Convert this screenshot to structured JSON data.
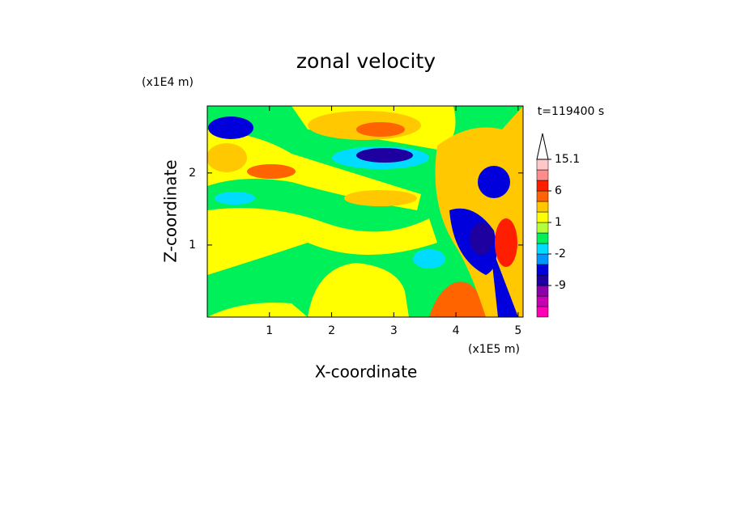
{
  "chart_data": {
    "type": "contour",
    "title": "zonal velocity",
    "xlabel": "X-coordinate",
    "ylabel": "Z-coordinate",
    "xunit": "(x1E5 m)",
    "yunit": "(x1E4 m)",
    "annotation": "t=119400 s",
    "xlim": [
      0,
      5.08
    ],
    "xticks": [
      1,
      2,
      3,
      4,
      5
    ],
    "ylim": [
      0,
      2.93
    ],
    "yticks": [
      1,
      2
    ],
    "colorbar": {
      "levels": [
        -18,
        -15,
        -12,
        -9,
        -6,
        -3,
        -2,
        -1,
        0,
        1,
        2,
        3,
        6,
        9,
        12,
        15.1
      ],
      "colors": [
        "#ff00b4",
        "#c800b4",
        "#8c00aa",
        "#1e00a0",
        "#0000dc",
        "#0096ff",
        "#00dcff",
        "#00f05a",
        "#b4ff3c",
        "#ffff00",
        "#ffc800",
        "#ff6400",
        "#ff1e00",
        "#ff8c8c",
        "#ffc8c8"
      ],
      "ticks": [
        15.1,
        6,
        1,
        -2,
        -9
      ]
    }
  }
}
